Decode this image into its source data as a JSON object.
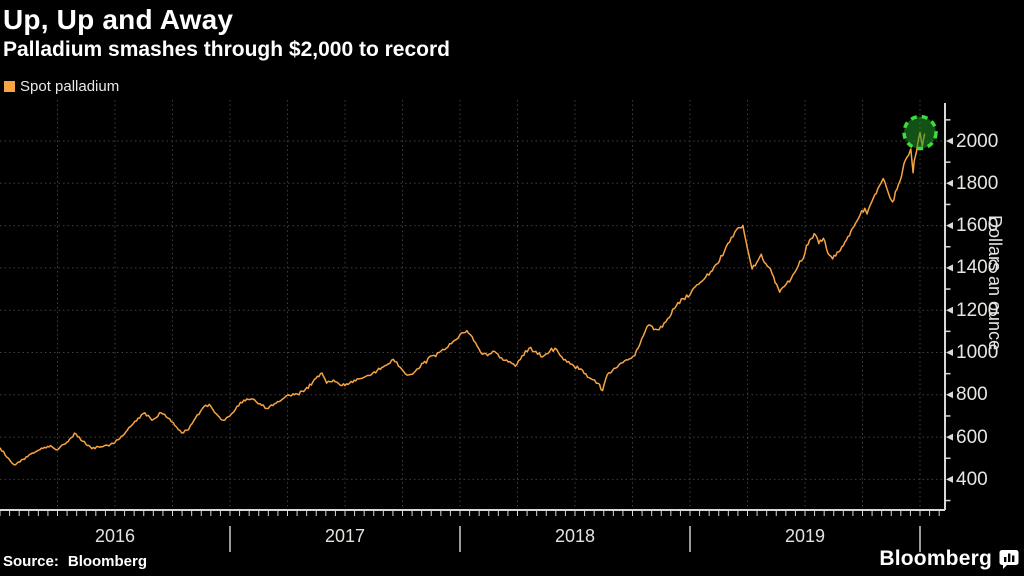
{
  "header": {
    "title": "Up, Up and Away",
    "subtitle": "Palladium smashes through $2,000 to record"
  },
  "legend": {
    "label": "Spot palladium",
    "swatch_color": "#f7a442"
  },
  "footer": {
    "source_label": "Source:",
    "source_value": "Bloomberg",
    "brand": "Bloomberg"
  },
  "colors": {
    "background": "#000000",
    "title_text": "#ffffff",
    "axis": "#d9d9d9",
    "grid": "#3f3f3f",
    "tick_label": "#e6e6e3",
    "line": "#f7a442",
    "annotation_stroke": "#3bdc3b",
    "annotation_fill": "rgba(34,150,40,0.55)",
    "year_separator": "#9a9a9a"
  },
  "chart_data": {
    "type": "line",
    "title": "Up, Up and Away",
    "subtitle": "Palladium smashes through $2,000 to record",
    "ylabel": "Dollars an ounce",
    "xlabel": "",
    "legend_position": "top-left",
    "grid": "dotted; vertical quarterly lines, horizontal every 200 dollars",
    "x_year_labels": [
      "2016",
      "2017",
      "2018",
      "2019"
    ],
    "y_ticks": [
      400,
      600,
      800,
      1000,
      1200,
      1400,
      1600,
      1800,
      2000
    ],
    "y_minor_ticks": [
      300,
      500,
      700,
      900,
      1100,
      1300,
      1500,
      1700,
      1900,
      2100
    ],
    "x_minor_ticks_per_year": 24,
    "xlim": [
      2016.0,
      2020.11
    ],
    "ylim": [
      270,
      2190
    ],
    "annotation": {
      "shape": "dashed-circle",
      "x": 2020.0,
      "y": 2040,
      "radius_px": 16,
      "highlights": "record high above $2,000"
    },
    "series": [
      {
        "name": "Spot palladium",
        "color": "#f7a442",
        "points": [
          [
            2016.0,
            550
          ],
          [
            2016.03,
            505
          ],
          [
            2016.06,
            470
          ],
          [
            2016.1,
            495
          ],
          [
            2016.14,
            525
          ],
          [
            2016.18,
            548
          ],
          [
            2016.22,
            560
          ],
          [
            2016.25,
            540
          ],
          [
            2016.29,
            575
          ],
          [
            2016.33,
            615
          ],
          [
            2016.36,
            580
          ],
          [
            2016.4,
            545
          ],
          [
            2016.44,
            555
          ],
          [
            2016.48,
            565
          ],
          [
            2016.52,
            592
          ],
          [
            2016.56,
            645
          ],
          [
            2016.6,
            690
          ],
          [
            2016.63,
            715
          ],
          [
            2016.66,
            680
          ],
          [
            2016.7,
            715
          ],
          [
            2016.73,
            690
          ],
          [
            2016.76,
            655
          ],
          [
            2016.79,
            620
          ],
          [
            2016.82,
            635
          ],
          [
            2016.85,
            690
          ],
          [
            2016.88,
            735
          ],
          [
            2016.91,
            755
          ],
          [
            2016.94,
            710
          ],
          [
            2016.97,
            680
          ],
          [
            2017.0,
            700
          ],
          [
            2017.03,
            745
          ],
          [
            2017.06,
            775
          ],
          [
            2017.1,
            780
          ],
          [
            2017.13,
            758
          ],
          [
            2017.16,
            735
          ],
          [
            2017.2,
            760
          ],
          [
            2017.24,
            790
          ],
          [
            2017.28,
            800
          ],
          [
            2017.32,
            815
          ],
          [
            2017.36,
            860
          ],
          [
            2017.4,
            903
          ],
          [
            2017.42,
            855
          ],
          [
            2017.45,
            870
          ],
          [
            2017.48,
            845
          ],
          [
            2017.52,
            855
          ],
          [
            2017.56,
            875
          ],
          [
            2017.6,
            892
          ],
          [
            2017.64,
            915
          ],
          [
            2017.68,
            940
          ],
          [
            2017.71,
            968
          ],
          [
            2017.74,
            930
          ],
          [
            2017.77,
            893
          ],
          [
            2017.8,
            905
          ],
          [
            2017.84,
            950
          ],
          [
            2017.88,
            985
          ],
          [
            2017.91,
            1000
          ],
          [
            2017.94,
            1020
          ],
          [
            2017.97,
            1052
          ],
          [
            2018.0,
            1085
          ],
          [
            2018.03,
            1103
          ],
          [
            2018.06,
            1055
          ],
          [
            2018.09,
            1000
          ],
          [
            2018.12,
            985
          ],
          [
            2018.15,
            1005
          ],
          [
            2018.18,
            975
          ],
          [
            2018.21,
            955
          ],
          [
            2018.24,
            935
          ],
          [
            2018.27,
            985
          ],
          [
            2018.3,
            1020
          ],
          [
            2018.33,
            1005
          ],
          [
            2018.36,
            980
          ],
          [
            2018.39,
            1005
          ],
          [
            2018.42,
            1015
          ],
          [
            2018.45,
            965
          ],
          [
            2018.48,
            945
          ],
          [
            2018.51,
            935
          ],
          [
            2018.54,
            900
          ],
          [
            2018.57,
            875
          ],
          [
            2018.6,
            855
          ],
          [
            2018.62,
            820
          ],
          [
            2018.64,
            895
          ],
          [
            2018.67,
            925
          ],
          [
            2018.7,
            950
          ],
          [
            2018.73,
            965
          ],
          [
            2018.76,
            985
          ],
          [
            2018.79,
            1065
          ],
          [
            2018.82,
            1130
          ],
          [
            2018.85,
            1110
          ],
          [
            2018.88,
            1120
          ],
          [
            2018.91,
            1165
          ],
          [
            2018.94,
            1220
          ],
          [
            2018.97,
            1255
          ],
          [
            2019.0,
            1272
          ],
          [
            2019.03,
            1320
          ],
          [
            2019.06,
            1345
          ],
          [
            2019.09,
            1382
          ],
          [
            2019.12,
            1420
          ],
          [
            2019.15,
            1480
          ],
          [
            2019.18,
            1545
          ],
          [
            2019.21,
            1590
          ],
          [
            2019.23,
            1601
          ],
          [
            2019.25,
            1490
          ],
          [
            2019.27,
            1395
          ],
          [
            2019.29,
            1425
          ],
          [
            2019.31,
            1465
          ],
          [
            2019.33,
            1420
          ],
          [
            2019.35,
            1395
          ],
          [
            2019.37,
            1330
          ],
          [
            2019.39,
            1285
          ],
          [
            2019.41,
            1312
          ],
          [
            2019.44,
            1350
          ],
          [
            2019.47,
            1408
          ],
          [
            2019.5,
            1470
          ],
          [
            2019.52,
            1532
          ],
          [
            2019.54,
            1562
          ],
          [
            2019.56,
            1515
          ],
          [
            2019.58,
            1540
          ],
          [
            2019.6,
            1468
          ],
          [
            2019.62,
            1442
          ],
          [
            2019.64,
            1475
          ],
          [
            2019.66,
            1500
          ],
          [
            2019.68,
            1532
          ],
          [
            2019.7,
            1575
          ],
          [
            2019.72,
            1612
          ],
          [
            2019.74,
            1652
          ],
          [
            2019.76,
            1682
          ],
          [
            2019.77,
            1655
          ],
          [
            2019.79,
            1712
          ],
          [
            2019.81,
            1752
          ],
          [
            2019.83,
            1800
          ],
          [
            2019.84,
            1822
          ],
          [
            2019.86,
            1762
          ],
          [
            2019.87,
            1730
          ],
          [
            2019.88,
            1712
          ],
          [
            2019.9,
            1772
          ],
          [
            2019.92,
            1835
          ],
          [
            2019.93,
            1892
          ],
          [
            2019.95,
            1932
          ],
          [
            2019.96,
            1962
          ],
          [
            2019.97,
            1850
          ],
          [
            2019.975,
            1905
          ],
          [
            2019.985,
            1950
          ],
          [
            2020.0,
            2040
          ],
          [
            2020.01,
            1975
          ],
          [
            2020.02,
            2035
          ]
        ]
      }
    ]
  }
}
